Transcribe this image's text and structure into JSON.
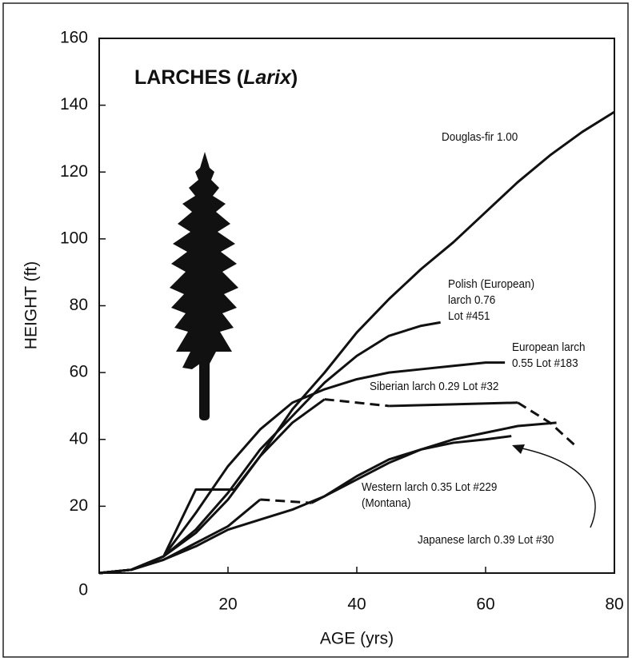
{
  "chart_data": {
    "type": "line",
    "title_parts": [
      "LARCHES (",
      "Larix",
      ")"
    ],
    "xlabel": "AGE (yrs)",
    "ylabel": "HEIGHT (ft)",
    "xlim": [
      0,
      80
    ],
    "xticks": [
      20,
      40,
      60,
      80
    ],
    "ylim": [
      0,
      160
    ],
    "yticks": [
      0,
      20,
      40,
      60,
      80,
      100,
      120,
      140,
      160
    ],
    "color": "#111111",
    "series": [
      {
        "name": "Douglas-fir 1.00",
        "style": "solid",
        "x": [
          0,
          5,
          10,
          15,
          20,
          25,
          30,
          35,
          40,
          45,
          50,
          55,
          60,
          65,
          70,
          75,
          80
        ],
        "values": [
          0,
          1,
          5,
          12,
          22,
          35,
          49,
          60,
          72,
          82,
          91,
          99,
          108,
          117,
          125,
          132,
          138
        ]
      },
      {
        "name": "Polish (European)\nlarch 0.76\nLot #451",
        "style": "solid",
        "x": [
          0,
          5,
          10,
          15,
          20,
          25,
          30,
          35,
          40,
          45,
          50,
          53
        ],
        "values": [
          0,
          1,
          5,
          13,
          24,
          37,
          47,
          57,
          65,
          71,
          74,
          75
        ]
      },
      {
        "name": "European larch\n0.55 Lot #183",
        "style": "solid",
        "x": [
          0,
          5,
          10,
          15,
          20,
          25,
          30,
          35,
          40,
          45,
          50,
          55,
          60,
          63
        ],
        "values": [
          0,
          1,
          5,
          18,
          32,
          43,
          51,
          55,
          58,
          60,
          61,
          62,
          63,
          63
        ]
      },
      {
        "name": "Siberian larch 0.29 Lot #32",
        "style": "solid",
        "x": [
          0,
          5,
          10,
          15,
          21,
          25,
          30,
          35
        ],
        "values": [
          0,
          1,
          5,
          25,
          25,
          35,
          45,
          52
        ]
      },
      {
        "style": "dashed",
        "x": [
          35,
          40,
          45
        ],
        "values": [
          52,
          51,
          50
        ]
      },
      {
        "style": "solid",
        "x": [
          45,
          55,
          65
        ],
        "values": [
          50,
          50.5,
          51
        ]
      },
      {
        "style": "dashed",
        "x": [
          65,
          70,
          74
        ],
        "values": [
          51,
          45,
          38
        ]
      },
      {
        "name": "Western larch 0.35 Lot #229\n(Montana)",
        "style": "solid",
        "x": [
          0,
          5,
          10,
          15,
          20,
          25
        ],
        "values": [
          0,
          1,
          4,
          9,
          14,
          22
        ]
      },
      {
        "style": "dashed",
        "x": [
          25,
          29,
          33
        ],
        "values": [
          22,
          21.5,
          21
        ]
      },
      {
        "style": "solid",
        "x": [
          33,
          40,
          45,
          50,
          55,
          60,
          65,
          71
        ],
        "values": [
          21,
          28,
          33,
          37,
          40,
          42,
          44,
          45
        ]
      },
      {
        "name": "Japanese larch 0.39 Lot #30",
        "style": "solid",
        "x": [
          0,
          5,
          10,
          15,
          20,
          25,
          30,
          35,
          40,
          45,
          50,
          55,
          60,
          64
        ],
        "values": [
          0,
          1,
          4,
          8,
          13,
          16,
          19,
          23,
          29,
          34,
          37,
          39,
          40,
          41
        ]
      }
    ]
  }
}
